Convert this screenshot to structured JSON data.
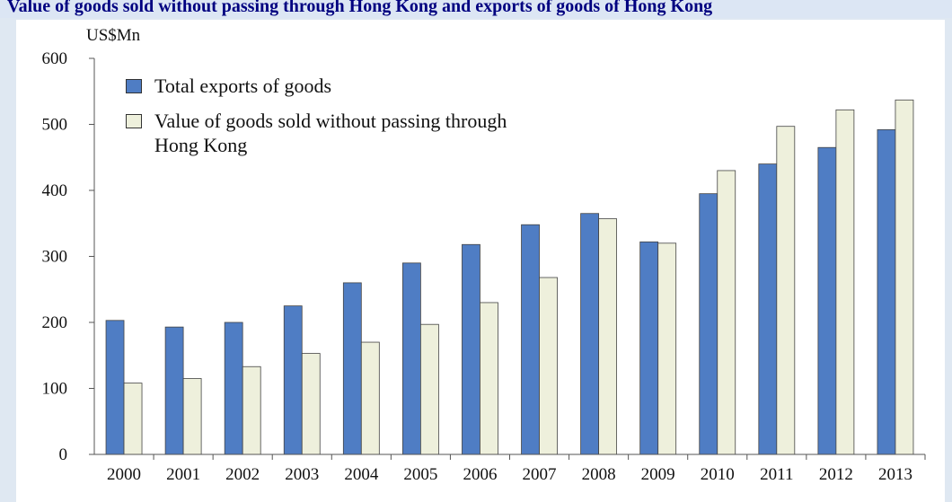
{
  "chart_data": {
    "type": "bar",
    "title": "Value of goods sold without passing through Hong Kong and exports of goods of Hong Kong",
    "y_label": "US$Mn",
    "categories": [
      "2000",
      "2001",
      "2002",
      "2003",
      "2004",
      "2005",
      "2006",
      "2007",
      "2008",
      "2009",
      "2010",
      "2011",
      "2012",
      "2013"
    ],
    "series": [
      {
        "name": "Total exports of goods",
        "color": "#4f7dc4",
        "values": [
          203,
          193,
          200,
          225,
          260,
          290,
          318,
          348,
          365,
          322,
          395,
          440,
          465,
          492
        ]
      },
      {
        "name": "Value of goods sold without passing through Hong Kong",
        "color": "#eef0dc",
        "values": [
          108,
          115,
          133,
          153,
          170,
          197,
          230,
          268,
          357,
          320,
          430,
          497,
          522,
          537
        ]
      }
    ],
    "ylim": [
      0,
      600
    ],
    "yticks": [
      0,
      100,
      200,
      300,
      400,
      500,
      600
    ],
    "legend": "upper left"
  }
}
